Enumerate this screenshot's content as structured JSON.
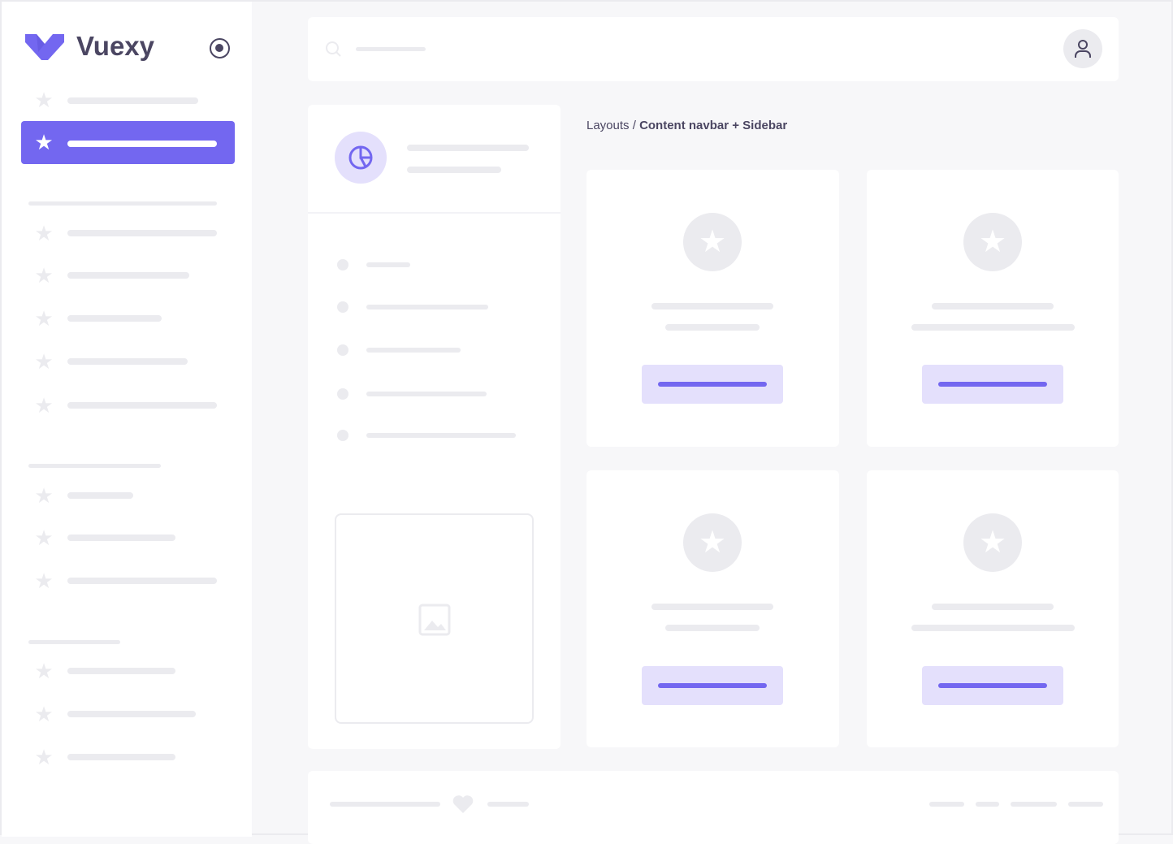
{
  "brand": {
    "name": "Vuexy",
    "logo_color": "#7367f0"
  },
  "breadcrumb": {
    "parent": "Layouts",
    "separator": " / ",
    "current": "Content navbar + Sidebar"
  },
  "colors": {
    "primary": "#7367f0",
    "primary_light": "#e4e0fc",
    "placeholder": "#ebebef",
    "background": "#f7f7f9"
  },
  "icons": {
    "sidebar_toggle": "radio-circle-icon",
    "nav_item": "star-icon",
    "search": "search-icon",
    "user": "user-icon",
    "panel": "pie-chart-icon",
    "image": "image-icon",
    "footer": "heart-icon"
  }
}
